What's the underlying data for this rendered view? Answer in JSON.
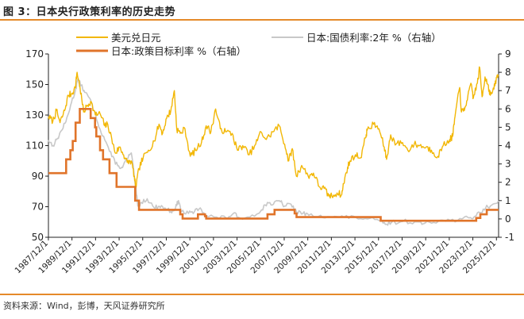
{
  "title": "图 3：日本央行政策利率的历史走势",
  "source": "资料来源：Wind，彭博，天风证券研究所",
  "colors": {
    "usdjpy": "#f2b705",
    "jgb2y": "#c8c8c8",
    "policy": "#e0742a",
    "rule": "#e58a2a"
  },
  "chart_data": {
    "type": "line",
    "legend": [
      {
        "key": "usdjpy",
        "label": "美元兑日元"
      },
      {
        "key": "jgb2y",
        "label": "日本:国债利率:2年 %（右轴）"
      },
      {
        "key": "policy",
        "label": "日本:政策目标利率 %（右轴）"
      }
    ],
    "legend_position": "top",
    "grid": false,
    "y_left": {
      "min": 50,
      "max": 170,
      "ticks": [
        "50",
        "70",
        "90",
        "110",
        "130",
        "150",
        "170"
      ]
    },
    "y_right": {
      "min": -1,
      "max": 9,
      "ticks": [
        "-1",
        "0",
        "1",
        "2",
        "3",
        "4",
        "5",
        "6",
        "7",
        "8",
        "9"
      ]
    },
    "x_range": [
      1987.92,
      2026.1
    ],
    "x_ticks": [
      "1987/12/1",
      "1989/12/1",
      "1991/12/1",
      "1993/12/1",
      "1995/12/1",
      "1997/12/1",
      "1999/12/1",
      "2001/12/1",
      "2003/12/1",
      "2005/12/1",
      "2007/12/1",
      "2009/12/1",
      "2011/12/1",
      "2013/12/1",
      "2015/12/1",
      "2017/12/1",
      "2019/12/1",
      "2021/12/1",
      "2023/12/1",
      "2025/12/1"
    ],
    "series": [
      {
        "key": "usdjpy",
        "name": "美元兑日元",
        "axis": "left",
        "points": [
          [
            1987.92,
            129
          ],
          [
            1988.3,
            126
          ],
          [
            1988.6,
            133
          ],
          [
            1988.9,
            125
          ],
          [
            1989.3,
            133
          ],
          [
            1989.6,
            143
          ],
          [
            1989.9,
            144
          ],
          [
            1990.2,
            148
          ],
          [
            1990.35,
            158
          ],
          [
            1990.6,
            148
          ],
          [
            1990.9,
            132
          ],
          [
            1991.2,
            136
          ],
          [
            1991.5,
            139
          ],
          [
            1991.9,
            130
          ],
          [
            1992.3,
            131
          ],
          [
            1992.7,
            123
          ],
          [
            1992.95,
            124
          ],
          [
            1993.3,
            114
          ],
          [
            1993.6,
            105
          ],
          [
            1993.95,
            109
          ],
          [
            1994.3,
            104
          ],
          [
            1994.6,
            99
          ],
          [
            1994.95,
            100
          ],
          [
            1995.2,
            90
          ],
          [
            1995.32,
            82
          ],
          [
            1995.6,
            95
          ],
          [
            1995.95,
            102
          ],
          [
            1996.4,
            107
          ],
          [
            1996.9,
            113
          ],
          [
            1997.3,
            124
          ],
          [
            1997.6,
            118
          ],
          [
            1997.95,
            128
          ],
          [
            1998.3,
            133
          ],
          [
            1998.6,
            146
          ],
          [
            1998.8,
            121
          ],
          [
            1999.1,
            118
          ],
          [
            1999.5,
            121
          ],
          [
            1999.95,
            103
          ],
          [
            2000.4,
            107
          ],
          [
            2000.9,
            112
          ],
          [
            2001.3,
            123
          ],
          [
            2001.7,
            119
          ],
          [
            2002.1,
            134
          ],
          [
            2002.5,
            121
          ],
          [
            2002.95,
            119
          ],
          [
            2003.5,
            118
          ],
          [
            2003.95,
            107
          ],
          [
            2004.4,
            110
          ],
          [
            2004.95,
            104
          ],
          [
            2005.5,
            111
          ],
          [
            2005.95,
            119
          ],
          [
            2006.4,
            114
          ],
          [
            2006.95,
            119
          ],
          [
            2007.5,
            123
          ],
          [
            2007.95,
            111
          ],
          [
            2008.3,
            100
          ],
          [
            2008.6,
            108
          ],
          [
            2008.95,
            90
          ],
          [
            2009.4,
            97
          ],
          [
            2009.95,
            90
          ],
          [
            2010.4,
            92
          ],
          [
            2010.9,
            83
          ],
          [
            2011.3,
            82
          ],
          [
            2011.7,
            77
          ],
          [
            2011.95,
            77
          ],
          [
            2012.4,
            79
          ],
          [
            2012.8,
            78
          ],
          [
            2012.95,
            85
          ],
          [
            2013.3,
            96
          ],
          [
            2013.5,
            100
          ],
          [
            2013.95,
            104
          ],
          [
            2014.4,
            102
          ],
          [
            2014.8,
            115
          ],
          [
            2014.95,
            120
          ],
          [
            2015.5,
            124
          ],
          [
            2015.95,
            121
          ],
          [
            2016.4,
            109
          ],
          [
            2016.6,
            101
          ],
          [
            2016.95,
            117
          ],
          [
            2017.4,
            111
          ],
          [
            2017.95,
            112
          ],
          [
            2018.4,
            107
          ],
          [
            2018.95,
            111
          ],
          [
            2019.4,
            110
          ],
          [
            2019.95,
            109
          ],
          [
            2020.4,
            107
          ],
          [
            2020.95,
            103
          ],
          [
            2021.4,
            110
          ],
          [
            2021.95,
            114
          ],
          [
            2022.2,
            116
          ],
          [
            2022.4,
            129
          ],
          [
            2022.8,
            148
          ],
          [
            2022.95,
            132
          ],
          [
            2023.2,
            133
          ],
          [
            2023.5,
            143
          ],
          [
            2023.8,
            150
          ],
          [
            2023.95,
            141
          ],
          [
            2024.3,
            151
          ],
          [
            2024.5,
            161
          ],
          [
            2024.7,
            142
          ],
          [
            2024.95,
            155
          ],
          [
            2025.2,
            150
          ],
          [
            2025.4,
            143
          ],
          [
            2025.7,
            147
          ],
          [
            2025.95,
            155
          ],
          [
            2026.1,
            156
          ]
        ]
      },
      {
        "key": "jgb2y",
        "name": "日本:国债利率:2年 %（右轴）",
        "axis": "right",
        "points": [
          [
            1987.92,
            4.3
          ],
          [
            1988.3,
            4.0
          ],
          [
            1988.7,
            4.4
          ],
          [
            1989.0,
            4.8
          ],
          [
            1989.4,
            5.3
          ],
          [
            1989.8,
            6.2
          ],
          [
            1990.2,
            7.0
          ],
          [
            1990.4,
            7.6
          ],
          [
            1990.7,
            7.3
          ],
          [
            1991.0,
            6.9
          ],
          [
            1991.4,
            6.6
          ],
          [
            1991.8,
            5.9
          ],
          [
            1992.3,
            4.9
          ],
          [
            1992.8,
            4.2
          ],
          [
            1993.3,
            3.4
          ],
          [
            1993.8,
            2.9
          ],
          [
            1994.2,
            2.8
          ],
          [
            1994.6,
            3.3
          ],
          [
            1994.95,
            3.6
          ],
          [
            1995.3,
            1.8
          ],
          [
            1995.5,
            0.7
          ],
          [
            1995.8,
            0.9
          ],
          [
            1996.3,
            1.1
          ],
          [
            1996.9,
            0.6
          ],
          [
            1997.3,
            0.7
          ],
          [
            1997.8,
            0.6
          ],
          [
            1998.3,
            0.4
          ],
          [
            1998.7,
            0.6
          ],
          [
            1998.95,
            1.0
          ],
          [
            1999.2,
            0.4
          ],
          [
            1999.8,
            0.3
          ],
          [
            2000.3,
            0.4
          ],
          [
            2000.8,
            0.6
          ],
          [
            2001.3,
            0.2
          ],
          [
            2002.0,
            0.1
          ],
          [
            2003.0,
            0.05
          ],
          [
            2003.6,
            0.3
          ],
          [
            2004.0,
            0.1
          ],
          [
            2005.0,
            0.1
          ],
          [
            2006.0,
            0.5
          ],
          [
            2006.5,
            0.9
          ],
          [
            2007.0,
            0.8
          ],
          [
            2007.5,
            1.0
          ],
          [
            2007.95,
            0.7
          ],
          [
            2008.5,
            0.8
          ],
          [
            2008.95,
            0.4
          ],
          [
            2009.5,
            0.3
          ],
          [
            2010.0,
            0.2
          ],
          [
            2011.0,
            0.2
          ],
          [
            2012.0,
            0.1
          ],
          [
            2013.0,
            0.1
          ],
          [
            2014.0,
            0.08
          ],
          [
            2015.0,
            0.0
          ],
          [
            2016.0,
            -0.1
          ],
          [
            2016.5,
            -0.3
          ],
          [
            2017.0,
            -0.2
          ],
          [
            2018.0,
            -0.13
          ],
          [
            2019.0,
            -0.15
          ],
          [
            2019.6,
            -0.3
          ],
          [
            2020.0,
            -0.12
          ],
          [
            2021.0,
            -0.12
          ],
          [
            2022.0,
            -0.08
          ],
          [
            2023.0,
            0.0
          ],
          [
            2023.6,
            0.05
          ],
          [
            2024.0,
            0.1
          ],
          [
            2024.5,
            0.35
          ],
          [
            2025.0,
            0.6
          ],
          [
            2025.5,
            0.75
          ],
          [
            2026.1,
            1.0
          ]
        ]
      },
      {
        "key": "policy",
        "name": "日本:政策目标利率 %（右轴）",
        "axis": "right",
        "steps": [
          [
            1987.92,
            2.5
          ],
          [
            1989.42,
            3.25
          ],
          [
            1989.78,
            3.75
          ],
          [
            1989.98,
            4.25
          ],
          [
            1990.22,
            5.25
          ],
          [
            1990.58,
            6.0
          ],
          [
            1991.5,
            5.5
          ],
          [
            1991.87,
            5.0
          ],
          [
            1991.98,
            4.5
          ],
          [
            1992.3,
            3.75
          ],
          [
            1992.55,
            3.25
          ],
          [
            1993.1,
            2.5
          ],
          [
            1993.7,
            1.75
          ],
          [
            1995.28,
            1.0
          ],
          [
            1995.6,
            0.5
          ],
          [
            1999.1,
            0.25
          ],
          [
            1999.3,
            0.02
          ],
          [
            2000.6,
            0.25
          ],
          [
            2001.2,
            0.15
          ],
          [
            2001.3,
            0.02
          ],
          [
            2006.5,
            0.25
          ],
          [
            2007.1,
            0.5
          ],
          [
            2008.8,
            0.3
          ],
          [
            2008.96,
            0.1
          ],
          [
            2013.3,
            0.1
          ],
          [
            2016.1,
            -0.1
          ],
          [
            2024.2,
            0.05
          ],
          [
            2024.55,
            0.25
          ],
          [
            2025.1,
            0.5
          ],
          [
            2026.1,
            0.5
          ]
        ]
      }
    ]
  }
}
